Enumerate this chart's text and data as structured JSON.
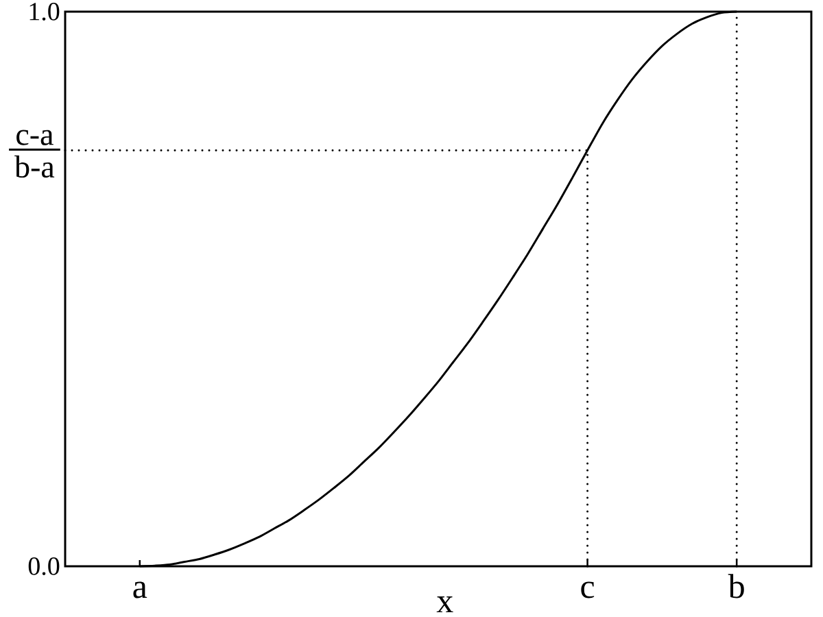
{
  "chart_data": {
    "type": "line",
    "xlabel": "x",
    "categories": [
      null,
      null,
      null,
      null,
      null,
      "a",
      null,
      null,
      null,
      null,
      null,
      null,
      null,
      null,
      null,
      null,
      null,
      null,
      null,
      null,
      null,
      null,
      null,
      null,
      null,
      null,
      null,
      null,
      null,
      null,
      null,
      null,
      null,
      null,
      null,
      "c",
      null,
      null,
      null,
      null,
      null,
      null,
      null,
      null,
      null,
      "b",
      null,
      null,
      null,
      null,
      null
    ],
    "ylim": [
      0,
      1
    ],
    "yticks": [
      {
        "value": 0,
        "label": "0.0"
      },
      {
        "value": 0.75,
        "label": "c-a\nb-a"
      },
      {
        "value": 1,
        "label": "1.0"
      }
    ],
    "series": [
      {
        "color": "#000000",
        "line_style": "solid",
        "values": [
          null,
          null,
          null,
          null,
          null,
          0,
          0.001,
          0.003,
          0.008,
          0.013,
          0.021,
          0.03,
          0.041,
          0.053,
          0.068,
          0.083,
          0.101,
          0.12,
          0.141,
          0.163,
          0.188,
          0.213,
          0.241,
          0.27,
          0.301,
          0.333,
          0.368,
          0.403,
          0.441,
          0.48,
          0.521,
          0.563,
          0.608,
          0.653,
          0.701,
          0.75,
          0.798,
          0.84,
          0.878,
          0.91,
          0.938,
          0.96,
          0.978,
          0.99,
          0.998,
          1,
          null,
          null,
          null,
          null,
          null
        ]
      }
    ],
    "ref_lines": [
      {
        "axis": "y",
        "value": 0.75,
        "color": "#000000",
        "line_style": "dotted"
      },
      {
        "axis": "x",
        "value": "c",
        "color": "#000000",
        "line_style": "dotted"
      },
      {
        "axis": "x",
        "value": "b",
        "color": "#000000",
        "line_style": "dotted"
      }
    ]
  }
}
